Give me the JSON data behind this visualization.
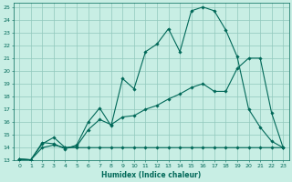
{
  "xlabel": "Humidex (Indice chaleur)",
  "bg_color": "#c8eee4",
  "grid_color": "#90c8bc",
  "line_color": "#006858",
  "xlim": [
    -0.5,
    23.5
  ],
  "ylim": [
    13,
    25.3
  ],
  "xticks": [
    0,
    1,
    2,
    3,
    4,
    5,
    6,
    7,
    8,
    9,
    10,
    11,
    12,
    13,
    14,
    15,
    16,
    17,
    18,
    19,
    20,
    21,
    22,
    23
  ],
  "yticks": [
    13,
    14,
    15,
    16,
    17,
    18,
    19,
    20,
    21,
    22,
    23,
    24,
    25
  ],
  "curve1_x": [
    0,
    1,
    2,
    3,
    4,
    5,
    6,
    7,
    8,
    9,
    10,
    11,
    12,
    13,
    14,
    15,
    16,
    17,
    18,
    19,
    20,
    21,
    22,
    23
  ],
  "curve1_y": [
    13.1,
    13.05,
    14.4,
    14.3,
    13.9,
    14.2,
    16.0,
    17.1,
    15.7,
    19.4,
    18.6,
    21.5,
    22.1,
    23.3,
    21.5,
    24.7,
    25.0,
    24.7,
    23.2,
    21.1,
    17.0,
    15.6,
    14.5,
    14.0
  ],
  "curve2_x": [
    0,
    1,
    2,
    3,
    4,
    5,
    6,
    7,
    8,
    9,
    10,
    11,
    12,
    13,
    14,
    15,
    16,
    17,
    18,
    19,
    20,
    21,
    22,
    23
  ],
  "curve2_y": [
    13.1,
    13.05,
    14.3,
    14.8,
    14.0,
    14.1,
    15.4,
    16.2,
    15.8,
    16.4,
    16.5,
    17.0,
    17.3,
    17.8,
    18.2,
    18.7,
    19.0,
    18.4,
    18.4,
    20.2,
    21.0,
    21.0,
    16.7,
    14.0
  ],
  "curve3_x": [
    0,
    1,
    2,
    3,
    4,
    5,
    6,
    7,
    8,
    9,
    10,
    11,
    12,
    13,
    14,
    15,
    16,
    17,
    18,
    19,
    20,
    21,
    22,
    23
  ],
  "curve3_y": [
    13.1,
    13.05,
    14.0,
    14.2,
    14.0,
    14.0,
    14.0,
    14.0,
    14.0,
    14.0,
    14.0,
    14.0,
    14.0,
    14.0,
    14.0,
    14.0,
    14.0,
    14.0,
    14.0,
    14.0,
    14.0,
    14.0,
    14.0,
    14.0
  ]
}
